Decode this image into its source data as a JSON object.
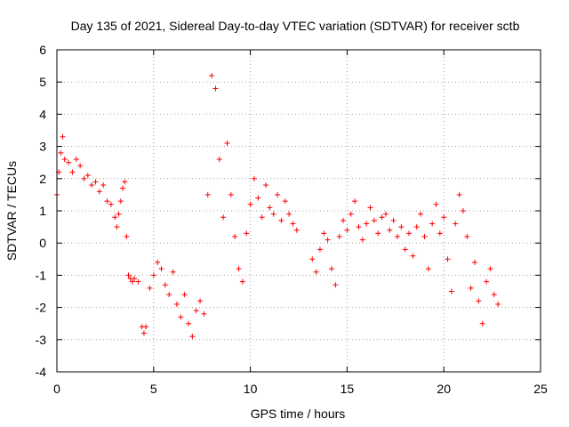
{
  "chart_data": {
    "type": "scatter",
    "title": "Day 135 of 2021, Sidereal Day-to-day VTEC variation (SDTVAR) for receiver sctb",
    "xlabel": "GPS time / hours",
    "ylabel": "SDTVAR / TECUs",
    "xlim": [
      0,
      25
    ],
    "ylim": [
      -4,
      6
    ],
    "xticks": [
      0,
      5,
      10,
      15,
      20,
      25
    ],
    "yticks": [
      -4,
      -3,
      -2,
      -1,
      0,
      1,
      2,
      3,
      4,
      5,
      6
    ],
    "xtick_labels": [
      "0",
      "5",
      "10",
      "15",
      "20",
      "25"
    ],
    "ytick_labels": [
      "-4",
      "-3",
      "-2",
      "-1",
      "0",
      "1",
      "2",
      "3",
      "4",
      "5",
      "6"
    ],
    "grid": true,
    "marker": "+",
    "series": [
      {
        "name": "SDTVAR",
        "color": "#ff0000",
        "segments": [
          {
            "x": [
              0.0,
              0.1,
              0.2,
              0.3,
              0.4,
              0.6,
              0.8,
              1.0,
              1.2,
              1.4,
              1.6,
              1.8,
              2.0,
              2.2,
              2.4,
              2.6,
              2.8,
              3.0,
              3.1,
              3.2,
              3.3,
              3.4,
              3.5,
              3.6,
              3.7,
              3.8,
              3.9,
              4.0,
              4.2,
              4.4,
              4.5,
              4.6,
              4.8,
              5.0,
              5.2,
              5.4,
              5.6,
              5.8,
              6.0,
              6.2,
              6.4,
              6.6,
              6.8,
              7.0,
              7.2,
              7.4,
              7.6,
              7.8,
              8.0,
              8.2,
              8.4,
              8.6,
              8.8,
              9.0,
              9.2,
              9.4,
              9.6,
              9.8,
              10.0,
              10.2,
              10.4,
              10.6,
              10.8,
              11.0,
              11.2,
              11.4,
              11.6,
              11.8,
              12.0,
              12.2,
              12.4
            ],
            "y": [
              1.5,
              2.2,
              2.8,
              3.3,
              2.6,
              2.5,
              2.2,
              2.6,
              2.4,
              2.0,
              2.1,
              1.8,
              1.9,
              1.6,
              1.8,
              1.3,
              1.2,
              0.8,
              0.5,
              0.9,
              1.3,
              1.7,
              1.9,
              0.2,
              -1.0,
              -1.1,
              -1.2,
              -1.1,
              -1.2,
              -2.6,
              -2.8,
              -2.6,
              -1.4,
              -1.0,
              -0.6,
              -0.8,
              -1.3,
              -1.6,
              -0.9,
              -1.9,
              -2.3,
              -1.6,
              -2.5,
              -2.9,
              -2.1,
              -1.8,
              -2.2,
              1.5,
              5.2,
              4.8,
              2.6,
              0.8,
              3.1,
              1.5,
              0.2,
              -0.8,
              -1.2,
              0.3,
              1.2,
              2.0,
              1.4,
              0.8,
              1.8,
              1.1,
              0.9,
              1.5,
              0.7,
              1.3,
              0.9,
              0.6,
              0.4
            ]
          },
          {
            "x": [
              13.2,
              13.4,
              13.6,
              13.8,
              14.0,
              14.2,
              14.4,
              14.6,
              14.8,
              15.0,
              15.2,
              15.4,
              15.6,
              15.8,
              16.0,
              16.2,
              16.4,
              16.6,
              16.8,
              17.0,
              17.2,
              17.4,
              17.6,
              17.8,
              18.0,
              18.2,
              18.4,
              18.6,
              18.8,
              19.0,
              19.2,
              19.4,
              19.6,
              19.8,
              20.0,
              20.2,
              20.4,
              20.6,
              20.8,
              21.0,
              21.2,
              21.4,
              21.6,
              21.8,
              22.0,
              22.2,
              22.4,
              22.6,
              22.8
            ],
            "y": [
              -0.5,
              -0.9,
              -0.2,
              0.3,
              0.1,
              -0.8,
              -1.3,
              0.2,
              0.7,
              0.4,
              0.9,
              1.3,
              0.5,
              0.1,
              0.6,
              1.1,
              0.7,
              0.3,
              0.8,
              0.9,
              0.4,
              0.7,
              0.2,
              0.5,
              -0.2,
              0.3,
              -0.4,
              0.5,
              0.9,
              0.2,
              -0.8,
              0.6,
              1.2,
              0.3,
              0.8,
              -0.5,
              -1.5,
              0.6,
              1.5,
              1.0,
              0.2,
              -1.4,
              -0.6,
              -1.8,
              -2.5,
              -1.2,
              -0.8,
              -1.6,
              -1.9
            ]
          }
        ]
      }
    ]
  }
}
